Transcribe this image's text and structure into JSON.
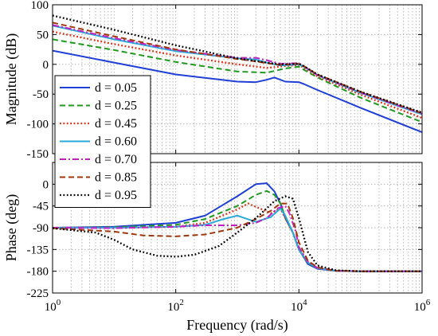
{
  "chart_data": {
    "type": "line",
    "x_scale": "log",
    "x_range": [
      1,
      1000000
    ],
    "x_ticks": [
      {
        "value": 1,
        "base": "10",
        "exp": "0"
      },
      {
        "value": 100,
        "base": "10",
        "exp": "2"
      },
      {
        "value": 10000,
        "base": "10",
        "exp": "4"
      },
      {
        "value": 1000000,
        "base": "10",
        "exp": "6"
      }
    ],
    "xlabel": "Frequency (rad/s)",
    "grid": true,
    "legend_placement": "left",
    "legend": [
      {
        "label": "d = 0.05",
        "color": "#1f3fd6",
        "dash": "solid"
      },
      {
        "label": "d = 0.25",
        "color": "#1e9a1e",
        "dash": "dashed"
      },
      {
        "label": "d = 0.45",
        "color": "#e02b10",
        "dash": "dotted"
      },
      {
        "label": "d = 0.60",
        "color": "#2aa9d8",
        "dash": "solid"
      },
      {
        "label": "d = 0.70",
        "color": "#c020c0",
        "dash": "dashdot"
      },
      {
        "label": "d = 0.85",
        "color": "#a0380f",
        "dash": "dashed"
      },
      {
        "label": "d = 0.95",
        "color": "#000000",
        "dash": "dotted"
      }
    ],
    "panels": [
      {
        "id": "magnitude",
        "ylabel": "Magnitude (dB)",
        "ylim": [
          -150,
          100
        ],
        "y_ticks": [
          "100",
          "50",
          "0",
          "-50",
          "-100",
          "-150"
        ],
        "y_tick_values": [
          100,
          50,
          0,
          -50,
          -100,
          -150
        ],
        "series": [
          {
            "x": [
              1,
              10,
              100,
              1000,
              2000,
              3000,
              4000,
              6000,
              10000,
              12000,
              20000,
              100000,
              1000000
            ],
            "y": [
              23,
              3,
              -17,
              -29,
              -30,
              -26,
              -22,
              -29,
              -30,
              -33,
              -43,
              -73,
              -114
            ]
          },
          {
            "x": [
              1,
              10,
              100,
              1000,
              3000,
              6000,
              10000,
              12000,
              20000,
              100000,
              1000000
            ],
            "y": [
              42,
              24,
              4,
              -12,
              -14,
              -7,
              -4,
              -9,
              -22,
              -56,
              -97
            ]
          },
          {
            "x": [
              1,
              10,
              100,
              1000,
              3000,
              6000,
              10000,
              12000,
              20000,
              100000,
              1000000
            ],
            "y": [
              55,
              34,
              15,
              0,
              -6,
              -3,
              -1,
              -6,
              -20,
              -51,
              -90
            ]
          },
          {
            "x": [
              1,
              10,
              100,
              1000,
              2000,
              3000,
              5000,
              10000,
              12000,
              20000,
              100000,
              1000000
            ],
            "y": [
              65,
              42,
              22,
              10,
              8,
              3,
              -2,
              0,
              -4,
              -18,
              -48,
              -84
            ]
          },
          {
            "x": [
              1,
              10,
              100,
              1000,
              2000,
              3000,
              5000,
              10000,
              12000,
              20000,
              100000,
              1000000
            ],
            "y": [
              66,
              44,
              24,
              11,
              11,
              7,
              1,
              2,
              -3,
              -18,
              -47,
              -83
            ]
          },
          {
            "x": [
              1,
              10,
              100,
              1000,
              2000,
              3000,
              5000,
              10000,
              12000,
              20000,
              100000,
              1000000
            ],
            "y": [
              70,
              47,
              25,
              9,
              5,
              2,
              -1,
              1,
              -3,
              -17,
              -46,
              -82
            ]
          },
          {
            "x": [
              1,
              10,
              100,
              1000,
              3000,
              5000,
              10000,
              12000,
              20000,
              100000,
              1000000
            ],
            "y": [
              82,
              58,
              32,
              10,
              3,
              0,
              1,
              -3,
              -17,
              -46,
              -81
            ]
          }
        ]
      },
      {
        "id": "phase",
        "ylabel": "Phase (deg)",
        "ylim": [
          -225,
          45
        ],
        "y_ticks": [
          "0",
          "-45",
          "-90",
          "-135",
          "-180",
          "-225"
        ],
        "y_tick_values": [
          0,
          -45,
          -90,
          -135,
          -180,
          -225
        ],
        "series": [
          {
            "x": [
              1,
              10,
              100,
              300,
              1000,
              2000,
              3000,
              4000,
              5000,
              6000,
              8000,
              10000,
              14000,
              20000,
              40000,
              100000,
              1000000
            ],
            "y": [
              -90,
              -88,
              -80,
              -65,
              -25,
              0,
              2,
              -15,
              -40,
              -70,
              -100,
              -135,
              -165,
              -175,
              -179,
              -180,
              -180
            ]
          },
          {
            "x": [
              1,
              10,
              100,
              300,
              1000,
              2000,
              3000,
              4000,
              5000,
              6000,
              8000,
              10000,
              14000,
              20000,
              40000,
              100000,
              1000000
            ],
            "y": [
              -90,
              -89,
              -84,
              -72,
              -45,
              -22,
              -14,
              -22,
              -40,
              -68,
              -100,
              -135,
              -163,
              -174,
              -179,
              -180,
              -180
            ]
          },
          {
            "x": [
              1,
              10,
              100,
              300,
              1000,
              1500,
              2500,
              3500,
              5000,
              6000,
              8000,
              10000,
              14000,
              20000,
              40000,
              100000,
              1000000
            ],
            "y": [
              -90,
              -90,
              -88,
              -80,
              -52,
              -40,
              -52,
              -60,
              -50,
              -70,
              -100,
              -135,
              -162,
              -174,
              -179,
              -180,
              -180
            ]
          },
          {
            "x": [
              1,
              10,
              100,
              300,
              600,
              1000,
              2000,
              3500,
              5000,
              6000,
              8000,
              10000,
              14000,
              20000,
              40000,
              100000,
              1000000
            ],
            "y": [
              -90,
              -90,
              -88,
              -84,
              -72,
              -65,
              -78,
              -68,
              -50,
              -65,
              -100,
              -135,
              -162,
              -174,
              -179,
              -180,
              -180
            ]
          },
          {
            "x": [
              1,
              10,
              100,
              300,
              1000,
              2000,
              3000,
              4500,
              6000,
              7000,
              9000,
              10000,
              14000,
              20000,
              40000,
              100000,
              1000000
            ],
            "y": [
              -90,
              -91,
              -88,
              -85,
              -85,
              -80,
              -70,
              -50,
              -45,
              -60,
              -100,
              -130,
              -160,
              -173,
              -179,
              -180,
              -180
            ]
          },
          {
            "x": [
              1,
              10,
              30,
              100,
              300,
              1000,
              2000,
              3500,
              5000,
              6500,
              8000,
              10000,
              14000,
              20000,
              40000,
              100000,
              1000000
            ],
            "y": [
              -91,
              -98,
              -106,
              -108,
              -104,
              -90,
              -72,
              -55,
              -40,
              -40,
              -70,
              -120,
              -158,
              -172,
              -179,
              -180,
              -180
            ]
          },
          {
            "x": [
              1,
              5,
              10,
              20,
              50,
              100,
              200,
              500,
              1000,
              2000,
              3000,
              4000,
              6000,
              8000,
              10000,
              14000,
              20000,
              40000,
              100000,
              1000000
            ],
            "y": [
              -91,
              -100,
              -115,
              -135,
              -148,
              -150,
              -146,
              -128,
              -100,
              -70,
              -50,
              -35,
              -25,
              -30,
              -70,
              -140,
              -168,
              -178,
              -180,
              -180
            ]
          }
        ]
      }
    ]
  }
}
